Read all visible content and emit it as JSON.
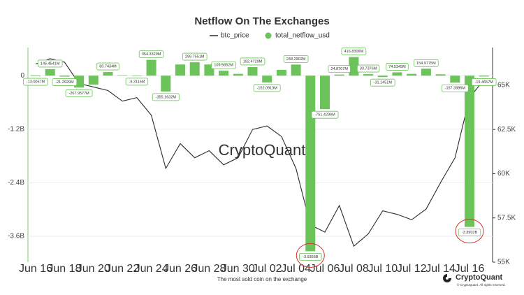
{
  "chart_data": {
    "type": "bar",
    "title": "Netflow On The Exchanges",
    "footnote": "The most sold coin on the exchange",
    "watermark": "CryptoQuant",
    "brand": "CryptoQuant",
    "copyright": "© CryptoQuant. All rights reserved.",
    "categories": [
      "Jun 16",
      null,
      "Jun 18",
      null,
      "Jun 20",
      null,
      "Jun 22",
      null,
      "Jun 24",
      null,
      "Jun 26",
      null,
      "Jun 28",
      null,
      "Jun 30",
      null,
      "Jul 02",
      null,
      "Jul 04",
      null,
      "Jul 06",
      null,
      "Jul 08",
      null,
      "Jul 10",
      null,
      "Jul 12",
      null,
      "Jul 14",
      null,
      "Jul 16",
      null
    ],
    "series": [
      {
        "name": "btc_price",
        "type": "line",
        "color": "#2b2b2b",
        "axis": "y2",
        "values": [
          66200,
          66500,
          66300,
          65100,
          64900,
          64700,
          64100,
          64300,
          63300,
          60300,
          61700,
          60900,
          61300,
          60500,
          60900,
          62500,
          62700,
          62100,
          60300,
          57100,
          56700,
          58200,
          55900,
          56600,
          57900,
          57700,
          57400,
          58000,
          59500,
          60900,
          64300,
          65300
        ]
      },
      {
        "name": "total_netflow_usd",
        "type": "bar",
        "color": "#6cc35a",
        "values": [
          -13005700,
          145454100,
          -21292900,
          -267957700,
          -200000000,
          80743400,
          10000000,
          -9311600,
          354332900,
          -355163200,
          250000000,
          299755100,
          250000000,
          109565200,
          40000000,
          192472900,
          -152091300,
          130000000,
          248290200,
          -3935600000,
          -751429600,
          24870700,
          416830600,
          33737600,
          -31145100,
          74534500,
          40000000,
          154977500,
          30000000,
          -157398600,
          -3390200000,
          -19465700
        ],
        "value_labels": [
          "-13.0057M",
          "145.4541M",
          "-21.2929M",
          "-267.9577M",
          null,
          "80.7434M",
          null,
          "-9.3116M",
          "354.3329M",
          "-355.1632M",
          null,
          "299.7551M",
          null,
          "109.5652M",
          null,
          "192.4729M",
          "-152.0913M",
          null,
          "248.2902M",
          "-3.9356B",
          "-751.4296M",
          "24.8707M",
          "416.8306M",
          "33.7376M",
          "-31.1451M",
          "74.5345M",
          null,
          "154.9775M",
          null,
          "-157.3986M",
          "-3.3902B",
          "-19.4657M"
        ]
      }
    ],
    "ylim": [
      -4180000000,
      630000000
    ],
    "yticks": [
      {
        "value": 0,
        "label": "0"
      },
      {
        "value": -1200000000,
        "label": "-1.2B"
      },
      {
        "value": -2400000000,
        "label": "-2.4B"
      },
      {
        "value": -3600000000,
        "label": "-3.6B"
      }
    ],
    "y2lim": [
      55000,
      67130
    ],
    "y2ticks": [
      {
        "value": 55000,
        "label": "55K"
      },
      {
        "value": 57500,
        "label": "57.5K"
      },
      {
        "value": 60000,
        "label": "60K"
      },
      {
        "value": 62500,
        "label": "62.5K"
      },
      {
        "value": 65000,
        "label": "65K"
      }
    ],
    "grid": true
  }
}
